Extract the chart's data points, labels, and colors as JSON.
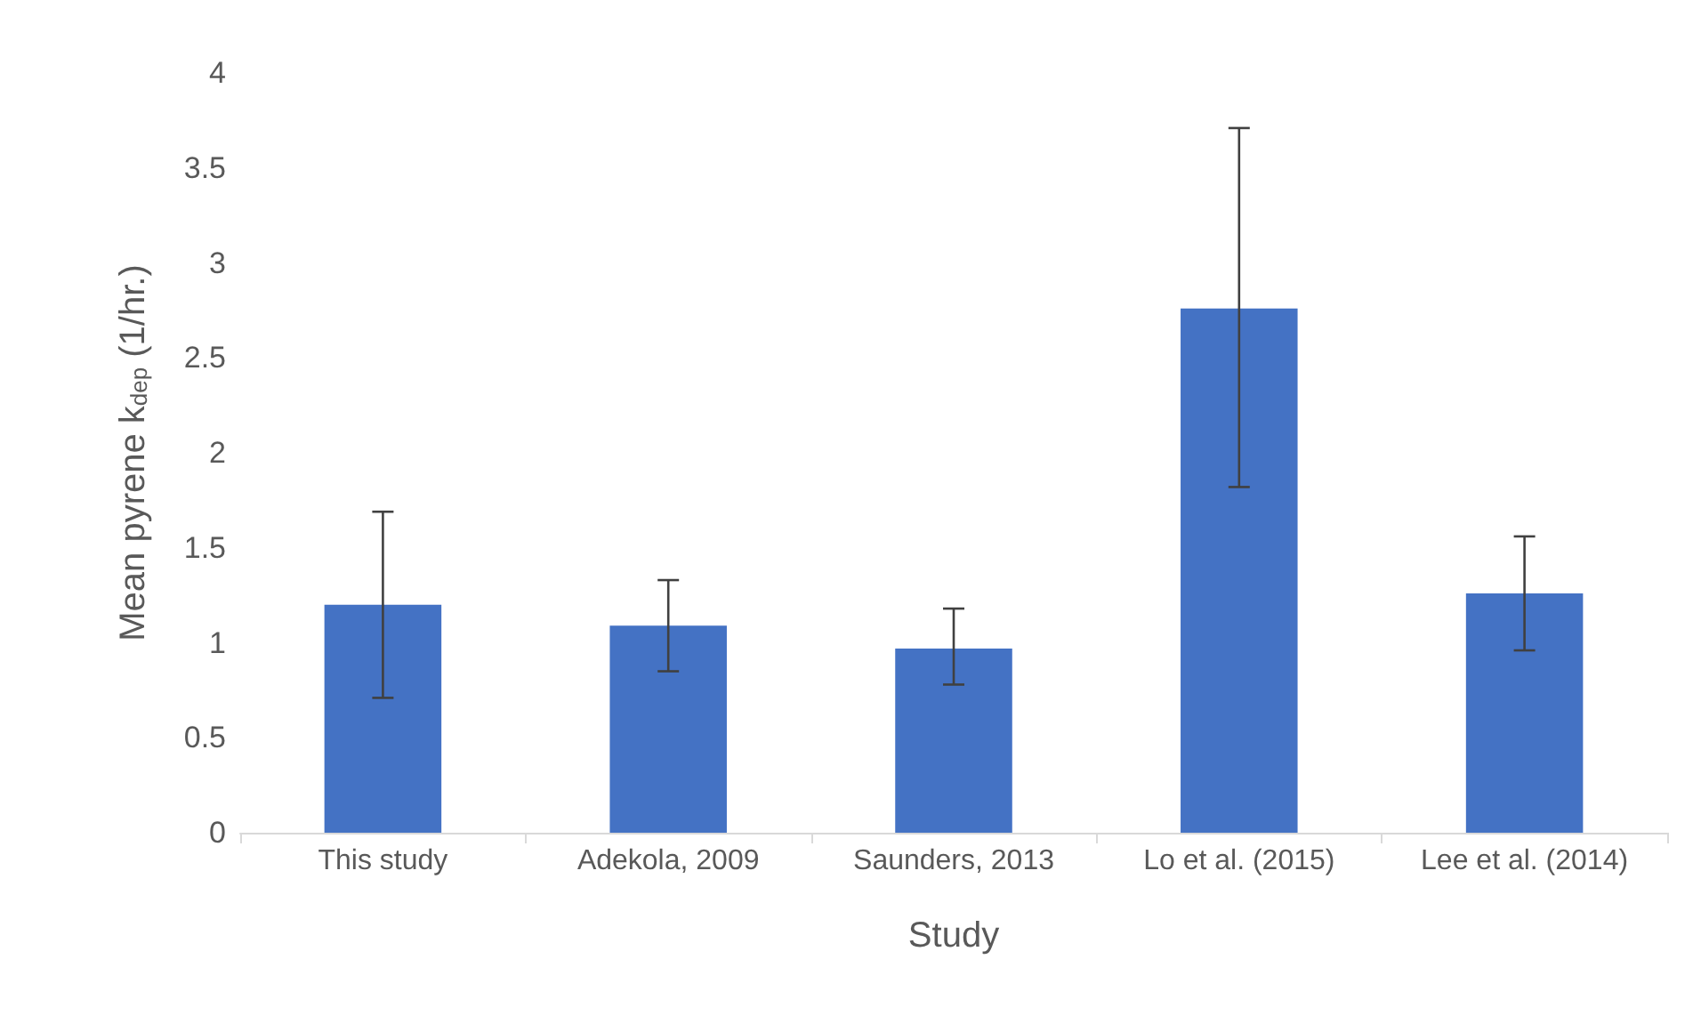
{
  "chart_data": {
    "type": "bar",
    "xlabel": "Study",
    "ylabel": "Mean pyrene k$_{dep}$ (1/hr.)",
    "categories": [
      "This study",
      "Adekola, 2009",
      "Saunders, 2013",
      "Lo et al. (2015)",
      "Lee et al. (2014)"
    ],
    "values": [
      1.2,
      1.09,
      0.97,
      2.76,
      1.26
    ],
    "errors": [
      [
        0.71,
        1.69
      ],
      [
        0.85,
        1.33
      ],
      [
        0.78,
        1.18
      ],
      [
        1.82,
        3.71
      ],
      [
        0.96,
        1.56
      ]
    ],
    "color": "#4472c4",
    "ylim": [
      0,
      4
    ],
    "yticks": [
      0,
      0.5,
      1,
      1.5,
      2,
      2.5,
      3,
      3.5,
      4
    ],
    "grid": false
  }
}
